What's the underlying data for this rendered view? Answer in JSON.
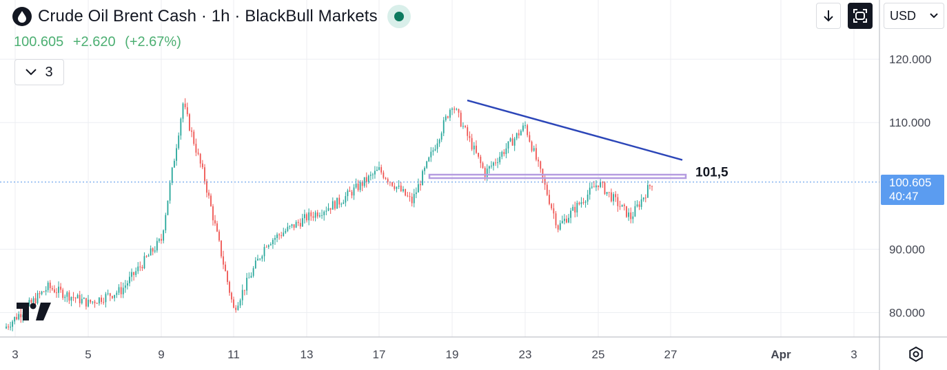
{
  "header": {
    "symbol_title": "Crude Oil Brent Cash · 1h · BlackBull Markets",
    "last_price": "100.605",
    "change": "+2.620",
    "change_pct": "(+2.67%)",
    "indicator_toggle_count": "3",
    "currency": "USD"
  },
  "price_label": {
    "price": "100.605",
    "countdown": "40:47"
  },
  "annotation": {
    "level_label": "101,5"
  },
  "colors": {
    "up": "#26a69a",
    "down": "#ef5350",
    "trendline": "#2c46b8",
    "level": "#b49be0",
    "price_line": "#4a8fe7",
    "grid": "#eceef2"
  },
  "icons": {
    "logo": "oil-drop-icon",
    "download": "download-arrow-icon",
    "fullscreen": "fullscreen-icon",
    "currency_dropdown": "chevron-down-icon",
    "settings": "settings-gear-icon",
    "indicators": "chevron-down-icon"
  },
  "chart_data": {
    "type": "candlestick",
    "title": "Crude Oil Brent Cash · 1h · BlackBull Markets",
    "y_ticks": [
      "120.000",
      "110.000",
      "90.000",
      "80.000"
    ],
    "x_ticks": [
      "3",
      "5",
      "9",
      "11",
      "13",
      "17",
      "19",
      "23",
      "25",
      "27",
      "Apr",
      "3"
    ],
    "ylim": [
      76.0,
      127.0
    ],
    "grid": true,
    "anchors": [
      {
        "x": "3",
        "y": 77.5
      },
      {
        "x": "3",
        "y": 84.0
      },
      {
        "x": "5",
        "y": 81.5
      },
      {
        "x": "5",
        "y": 83.5
      },
      {
        "x": "9",
        "y": 91.5
      },
      {
        "x": "9",
        "y": 113.0
      },
      {
        "x": "9",
        "y": 101.0
      },
      {
        "x": "11",
        "y": 80.5
      },
      {
        "x": "11",
        "y": 91.0
      },
      {
        "x": "13",
        "y": 95.0
      },
      {
        "x": "13",
        "y": 97.5
      },
      {
        "x": "17",
        "y": 102.5
      },
      {
        "x": "17",
        "y": 97.5
      },
      {
        "x": "19",
        "y": 113.0
      },
      {
        "x": "19",
        "y": 102.0
      },
      {
        "x": "23",
        "y": 109.5
      },
      {
        "x": "23",
        "y": 93.5
      },
      {
        "x": "25",
        "y": 100.5
      },
      {
        "x": "25",
        "y": 95.0
      },
      {
        "x": "27",
        "y": 100.605
      }
    ],
    "trendline": {
      "from": {
        "x": "19",
        "y": 113.5
      },
      "to": {
        "x": "27",
        "y": 104.1
      }
    },
    "horizontal_level": {
      "value": 101.5,
      "label": "101,5"
    },
    "last_price": 100.605
  }
}
